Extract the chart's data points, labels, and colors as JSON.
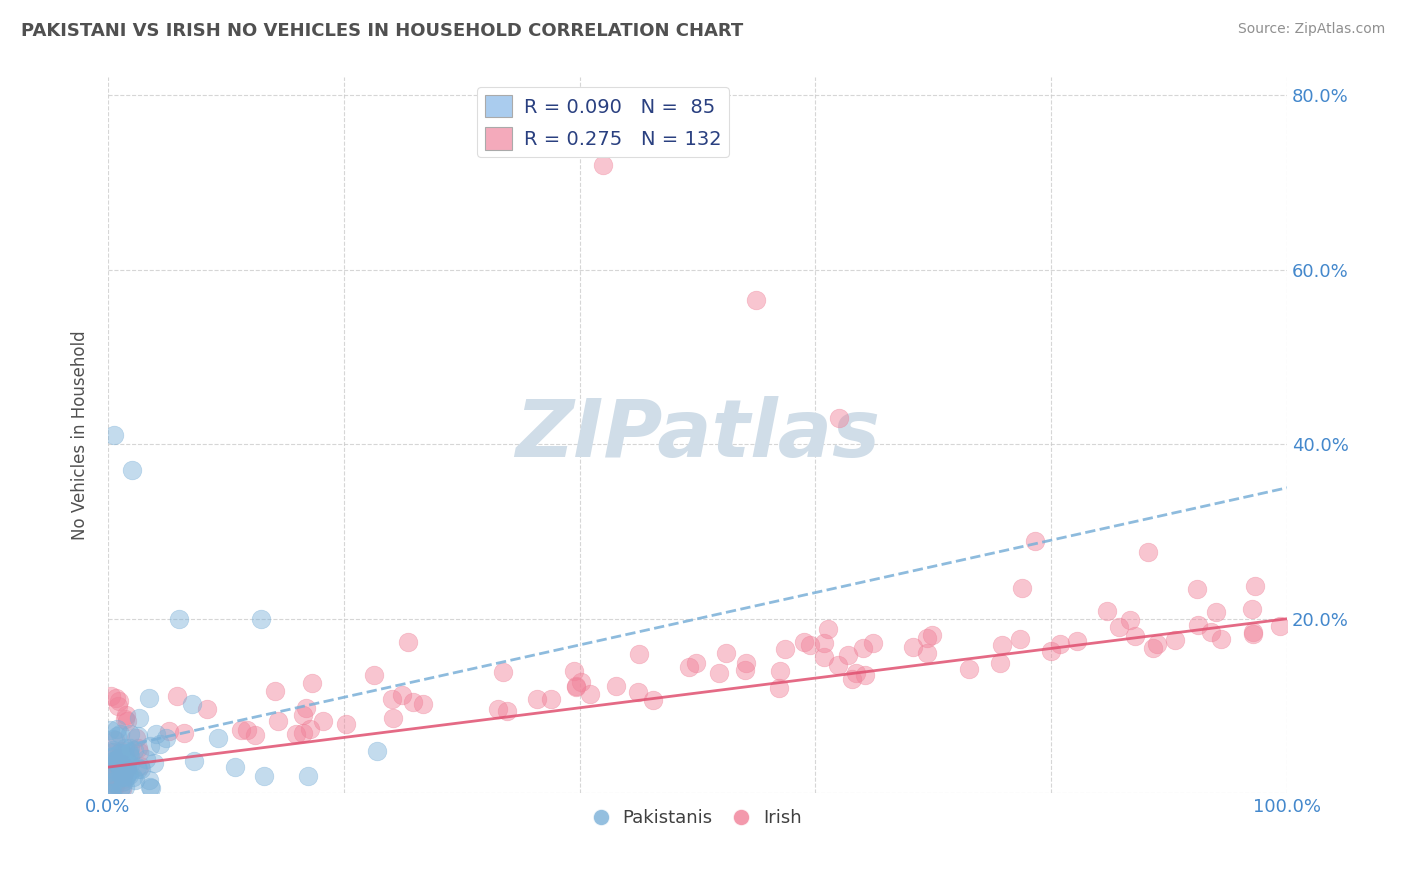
{
  "title": "PAKISTANI VS IRISH NO VEHICLES IN HOUSEHOLD CORRELATION CHART",
  "source": "Source: ZipAtlas.com",
  "ylabel": "No Vehicles in Household",
  "pakistani_R": 0.09,
  "pakistani_N": 85,
  "irish_R": 0.275,
  "irish_N": 132,
  "pakistani_scatter_color": "#7ab0d8",
  "irish_scatter_color": "#f08098",
  "trendline_pakistani_color": "#7ab0d8",
  "trendline_irish_color": "#e05070",
  "legend_box_pakistani": "#aaccee",
  "legend_box_irish": "#f4aabb",
  "watermark": "ZIPatlas",
  "watermark_color": "#d0dde8",
  "background_color": "#ffffff",
  "grid_color": "#cccccc",
  "title_color": "#505050",
  "source_color": "#909090",
  "legend_text_color": "#2a4080",
  "axis_label_color": "#4488cc"
}
